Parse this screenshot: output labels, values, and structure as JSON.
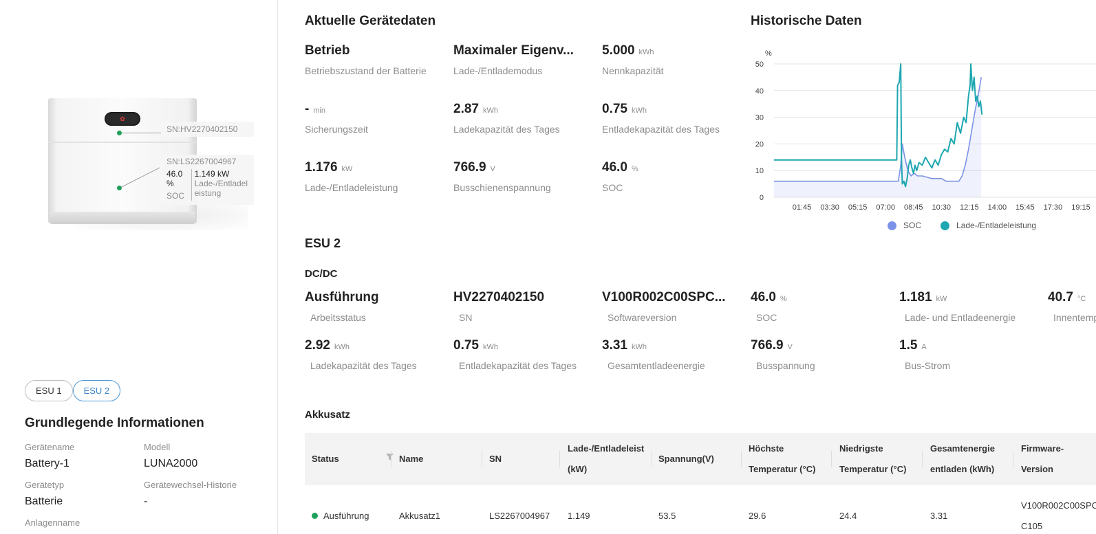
{
  "device_figure": {
    "hv_sn": "SN:HV2270402150",
    "ls_sn": "SN:LS2267004967",
    "soc_value": "46.0 %",
    "soc_label": "SOC",
    "power_value": "1.149 kW",
    "power_label_1": "Lade-/Entladel",
    "power_label_2": "eistung"
  },
  "esu_tabs": [
    {
      "label": "ESU 1",
      "active": false
    },
    {
      "label": "ESU 2",
      "active": true
    }
  ],
  "basic_info": {
    "title": "Grundlegende Informationen",
    "items": [
      {
        "label": "Gerätename",
        "value": "Battery-1"
      },
      {
        "label": "Modell",
        "value": "LUNA2000"
      },
      {
        "label": "Gerätetyp",
        "value": "Batterie"
      },
      {
        "label": "Gerätewechsel-Historie",
        "value": "-"
      },
      {
        "label": "Anlagenname",
        "value": ""
      }
    ]
  },
  "current": {
    "title": "Aktuelle Gerätedaten",
    "metrics": [
      {
        "value": "Betrieb",
        "unit": "",
        "label": "Betriebszustand der Batterie"
      },
      {
        "value": "Maximaler Eigenv...",
        "unit": "",
        "label": "Lade-/Entlademodus"
      },
      {
        "value": "5.000",
        "unit": "kWh",
        "label": "Nennkapazität"
      },
      {
        "value": "-",
        "unit": "min",
        "label": "Sicherungszeit"
      },
      {
        "value": "2.87",
        "unit": "kWh",
        "label": "Ladekapazität des Tages"
      },
      {
        "value": "0.75",
        "unit": "kWh",
        "label": "Entladekapazität des Tages"
      },
      {
        "value": "1.176",
        "unit": "kW",
        "label": "Lade-/Entladeleistung"
      },
      {
        "value": "766.9",
        "unit": "V",
        "label": "Busschienenspannung"
      },
      {
        "value": "46.0",
        "unit": "%",
        "label": "SOC"
      }
    ]
  },
  "history": {
    "title": "Historische Daten",
    "y_unit": "%",
    "legend": [
      {
        "name": "SOC",
        "color": "#7b93e6"
      },
      {
        "name": "Lade-/Entladeleistung",
        "color": "#1ea7b0"
      }
    ]
  },
  "chart_data": {
    "type": "line",
    "ylabel": "%",
    "ylim": [
      0,
      50
    ],
    "yticks": [
      "0",
      "10",
      "20",
      "30",
      "40",
      "50"
    ],
    "x_tick_labels": [
      "01:45",
      "03:30",
      "05:15",
      "07:00",
      "08:45",
      "10:30",
      "12:15",
      "14:00",
      "15:45",
      "17:30",
      "19:15"
    ],
    "x_hours": [
      0,
      1.75,
      3.5,
      5.25,
      7,
      8.75,
      10.5,
      12.25,
      14,
      15.75,
      17.5,
      19.25
    ],
    "grid": true,
    "legend_position": "bottom",
    "series": [
      {
        "name": "SOC",
        "color": "#7b93e6",
        "x": [
          0,
          7.8,
          7.95,
          8.05,
          8.2,
          8.4,
          8.6,
          8.8,
          9.0,
          9.3,
          9.6,
          9.9,
          10.2,
          10.5,
          10.8,
          11.0,
          11.2,
          11.4,
          11.6,
          11.8,
          12.0,
          12.2,
          12.4,
          12.6,
          12.8,
          13.0
        ],
        "y": [
          6,
          6,
          12,
          20,
          15,
          10,
          8,
          9,
          8,
          8,
          7.5,
          7,
          7,
          7,
          6,
          6,
          6,
          6,
          6,
          8,
          12,
          18,
          25,
          32,
          38,
          45
        ]
      },
      {
        "name": "Lade-/Entladeleistung",
        "color": "#1ea7b0",
        "x": [
          0,
          7.7,
          7.75,
          7.85,
          7.95,
          8.0,
          8.05,
          8.15,
          8.25,
          8.35,
          8.45,
          8.55,
          8.65,
          8.75,
          8.85,
          8.95,
          9.1,
          9.3,
          9.5,
          9.7,
          9.9,
          10.1,
          10.3,
          10.5,
          10.7,
          10.9,
          11.1,
          11.3,
          11.5,
          11.7,
          11.9,
          12.05,
          12.2,
          12.3,
          12.35,
          12.45,
          12.55,
          12.65,
          12.75,
          12.85,
          12.95,
          13.05
        ],
        "y": [
          14,
          14,
          42,
          43,
          50,
          14,
          5,
          6,
          4,
          7,
          12,
          14,
          11,
          9,
          12,
          10,
          13,
          12,
          15,
          13,
          11,
          14,
          12,
          16,
          18,
          17,
          22,
          20,
          28,
          24,
          30,
          28,
          38,
          42,
          50,
          40,
          45,
          36,
          38,
          34,
          36,
          31
        ]
      }
    ]
  },
  "esu2": {
    "title": "ESU 2",
    "subtitle": "DC/DC",
    "metrics": [
      {
        "value": "Ausführung",
        "unit": "",
        "label": "Arbeitsstatus"
      },
      {
        "value": "HV2270402150",
        "unit": "",
        "label": "SN"
      },
      {
        "value": "V100R002C00SPC...",
        "unit": "",
        "label": "Softwareversion"
      },
      {
        "value": "46.0",
        "unit": "%",
        "label": "SOC"
      },
      {
        "value": "1.181",
        "unit": "kW",
        "label": "Lade- und Entladeenergie"
      },
      {
        "value": "40.7",
        "unit": "°C",
        "label": "Innentemp"
      },
      {
        "value": "2.92",
        "unit": "kWh",
        "label": "Ladekapazität des Tages"
      },
      {
        "value": "0.75",
        "unit": "kWh",
        "label": "Entladekapazität des Tages"
      },
      {
        "value": "3.31",
        "unit": "kWh",
        "label": "Gesamtentladeenergie"
      },
      {
        "value": "766.9",
        "unit": "V",
        "label": "Busspannung"
      },
      {
        "value": "1.5",
        "unit": "A",
        "label": "Bus-Strom"
      }
    ]
  },
  "pack_table": {
    "title": "Akkusatz",
    "headers": [
      [
        "Status"
      ],
      [
        "Name"
      ],
      [
        "SN"
      ],
      [
        "Lade-/Entladeleist",
        "(kW)"
      ],
      [
        "Spannung(V)"
      ],
      [
        "Höchste",
        "Temperatur (°C)"
      ],
      [
        "Niedrigste",
        "Temperatur (°C)"
      ],
      [
        "Gesamtenergie",
        "entladen (kWh)"
      ],
      [
        "Firmware-",
        "Version"
      ]
    ],
    "rows": [
      {
        "status": "Ausführung",
        "name": "Akkusatz1",
        "sn": "LS2267004967",
        "power": "1.149",
        "voltage": "53.5",
        "max_temp": "29.6",
        "min_temp": "24.4",
        "discharged": "3.31",
        "firmware_1": "V100R002C00SPC",
        "firmware_2": "C105"
      }
    ]
  }
}
